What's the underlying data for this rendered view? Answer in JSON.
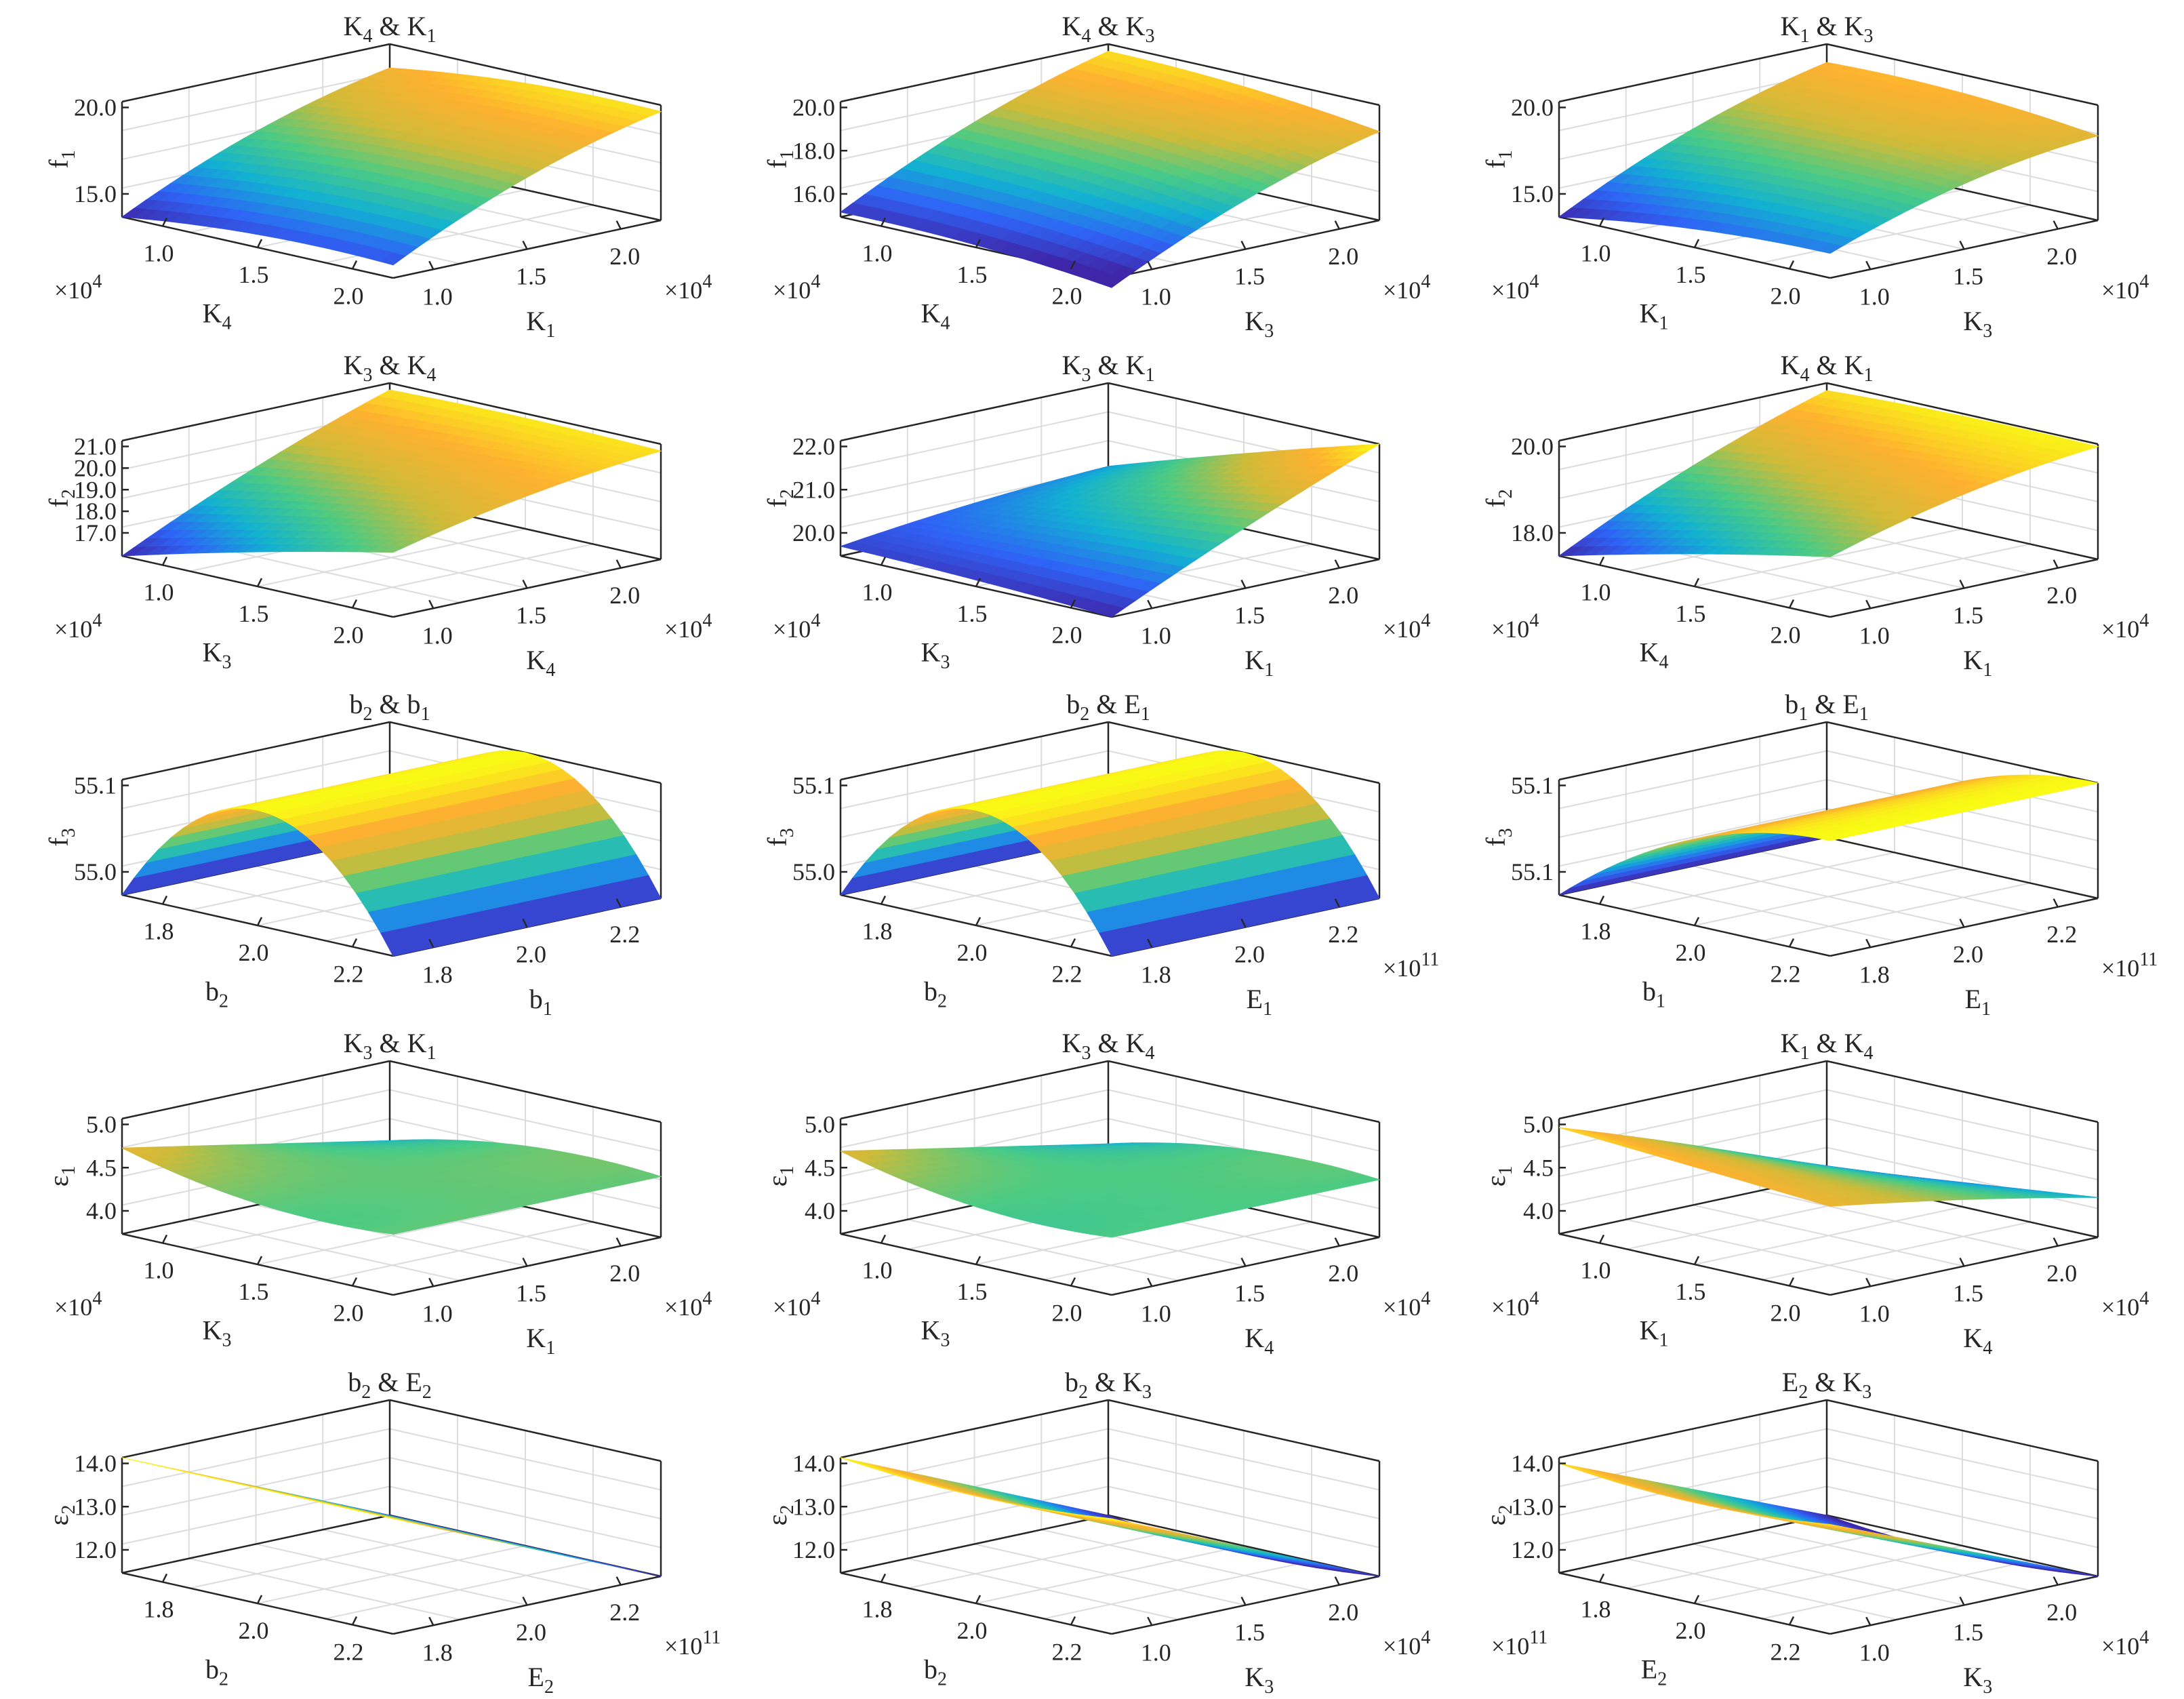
{
  "colormap": [
    "#3e26a8",
    "#2f63f6",
    "#12b1d2",
    "#4bcb84",
    "#cfbb39",
    "#feb130",
    "#f9fb15"
  ],
  "axis_color": "#262626",
  "grid_color": "#dcdcdc",
  "chart_data": [
    {
      "type": "surface",
      "title": "K",
      "title_sub_a": "4",
      "title_sep": " & K",
      "title_sub_b": "1",
      "xlabel": "K",
      "xlabel_sub": "4",
      "ylabel": "K",
      "ylabel_sub": "1",
      "zlabel": "f",
      "zlabel_sub": "1",
      "x_ticks": [
        "1.0",
        "1.5",
        "2.0"
      ],
      "y_ticks": [
        "1.0",
        "1.5",
        "2.0"
      ],
      "z_ticks": [
        "15.0",
        "20.0"
      ],
      "x_mult": "×10",
      "x_mult_exp": "4",
      "y_mult": "×10",
      "y_mult_exp": "4",
      "z_range": [
        14.7,
        20.0
      ],
      "corners": [
        14.7,
        15.3,
        18.9,
        19.7
      ],
      "bulge": [
        1.0,
        0.6
      ],
      "shape": "smooth"
    },
    {
      "type": "surface",
      "title": "K",
      "title_sub_a": "4",
      "title_sep": " & K",
      "title_sub_b": "3",
      "xlabel": "K",
      "xlabel_sub": "4",
      "ylabel": "K",
      "ylabel_sub": "3",
      "zlabel": "f",
      "zlabel_sub": "1",
      "x_ticks": [
        "1.0",
        "1.5",
        "2.0"
      ],
      "y_ticks": [
        "1.0",
        "1.5",
        "2.0"
      ],
      "z_ticks": [
        "16.0",
        "18.0",
        "20.0"
      ],
      "x_mult": "×10",
      "x_mult_exp": "4",
      "y_mult": "×10",
      "y_mult_exp": "4",
      "z_range": [
        15.2,
        20.0
      ],
      "corners": [
        15.4,
        14.8,
        19.7,
        18.9
      ],
      "bulge": [
        0.8,
        0.4
      ],
      "shape": "smooth"
    },
    {
      "type": "surface",
      "title": "K",
      "title_sub_a": "1",
      "title_sep": " & K",
      "title_sub_b": "3",
      "xlabel": "K",
      "xlabel_sub": "1",
      "ylabel": "K",
      "ylabel_sub": "3",
      "zlabel": "f",
      "zlabel_sub": "1",
      "x_ticks": [
        "1.0",
        "1.5",
        "2.0"
      ],
      "y_ticks": [
        "1.0",
        "1.5",
        "2.0"
      ],
      "z_ticks": [
        "15.0",
        "20.0"
      ],
      "x_mult": "×10",
      "x_mult_exp": "4",
      "y_mult": "×10",
      "y_mult_exp": "4",
      "z_range": [
        13.0,
        20.5
      ],
      "corners": [
        13.0,
        14.6,
        19.3,
        18.5
      ],
      "bulge": [
        1.4,
        0.8
      ],
      "shape": "smooth"
    },
    {
      "type": "surface",
      "title": "K",
      "title_sub_a": "3",
      "title_sep": " & K",
      "title_sub_b": "4",
      "xlabel": "K",
      "xlabel_sub": "3",
      "ylabel": "K",
      "ylabel_sub": "4",
      "zlabel": "f",
      "zlabel_sub": "2",
      "x_ticks": [
        "1.0",
        "1.5",
        "2.0"
      ],
      "y_ticks": [
        "1.0",
        "1.5",
        "2.0"
      ],
      "z_ticks": [
        "17.0",
        "18.0",
        "19.0",
        "20.0",
        "21.0"
      ],
      "x_mult": "×10",
      "x_mult_exp": "4",
      "y_mult": "×10",
      "y_mult_exp": "4",
      "z_range": [
        16.5,
        21.5
      ],
      "corners": [
        16.5,
        19.3,
        21.2,
        21.2
      ],
      "bulge": [
        0.5,
        0.2
      ],
      "shape": "smooth"
    },
    {
      "type": "surface",
      "title": "K",
      "title_sub_a": "3",
      "title_sep": " & K",
      "title_sub_b": "1",
      "xlabel": "K",
      "xlabel_sub": "3",
      "ylabel": "K",
      "ylabel_sub": "1",
      "zlabel": "f",
      "zlabel_sub": "2",
      "x_ticks": [
        "1.0",
        "1.5",
        "2.0"
      ],
      "y_ticks": [
        "1.0",
        "1.5",
        "2.0"
      ],
      "z_ticks": [
        "20.0",
        "21.0",
        "22.0"
      ],
      "x_mult": "×10",
      "x_mult_exp": "4",
      "y_mult": "×10",
      "y_mult_exp": "4",
      "z_range": [
        19.2,
        22.8
      ],
      "corners": [
        19.5,
        19.2,
        20.2,
        22.8
      ],
      "bulge": [
        0.2,
        0.1
      ],
      "shape": "smooth"
    },
    {
      "type": "surface",
      "title": "K",
      "title_sub_a": "4",
      "title_sep": " & K",
      "title_sub_b": "1",
      "xlabel": "K",
      "xlabel_sub": "4",
      "ylabel": "K",
      "ylabel_sub": "1",
      "zlabel": "f",
      "zlabel_sub": "2",
      "x_ticks": [
        "1.0",
        "1.5",
        "2.0"
      ],
      "y_ticks": [
        "1.0",
        "1.5",
        "2.0"
      ],
      "z_ticks": [
        "18.0",
        "20.0"
      ],
      "x_mult": "×10",
      "x_mult_exp": "4",
      "y_mult": "×10",
      "y_mult_exp": "4",
      "z_range": [
        17.4,
        22.0
      ],
      "corners": [
        17.4,
        19.8,
        21.7,
        21.9
      ],
      "bulge": [
        0.6,
        0.2
      ],
      "shape": "smooth"
    },
    {
      "type": "surface",
      "title": "b",
      "title_sub_a": "2",
      "title_sep": " & b",
      "title_sub_b": "1",
      "xlabel": "b",
      "xlabel_sub": "2",
      "ylabel": "b",
      "ylabel_sub": "1",
      "zlabel": "f",
      "zlabel_sub": "3",
      "x_ticks": [
        "1.8",
        "2.0",
        "2.2"
      ],
      "y_ticks": [
        "1.8",
        "2.0",
        "2.2"
      ],
      "z_ticks": [
        "55.0",
        "55.1"
      ],
      "x_mult": "",
      "x_mult_exp": "",
      "y_mult": "",
      "y_mult_exp": "",
      "z_range": [
        54.92,
        55.12
      ],
      "peak": 55.12,
      "base": 54.92,
      "shape": "ridge_x"
    },
    {
      "type": "surface",
      "title": "b",
      "title_sub_a": "2",
      "title_sep": " & E",
      "title_sub_b": "1",
      "xlabel": "b",
      "xlabel_sub": "2",
      "ylabel": "E",
      "ylabel_sub": "1",
      "zlabel": "f",
      "zlabel_sub": "3",
      "x_ticks": [
        "1.8",
        "2.0",
        "2.2"
      ],
      "y_ticks": [
        "1.8",
        "2.0",
        "2.2"
      ],
      "z_ticks": [
        "55.0",
        "55.1"
      ],
      "x_mult": "",
      "x_mult_exp": "",
      "y_mult": "×10",
      "y_mult_exp": "11",
      "z_range": [
        54.92,
        55.12
      ],
      "peak": 55.12,
      "base": 54.92,
      "shape": "ridge_x"
    },
    {
      "type": "surface",
      "title": "b",
      "title_sub_a": "1",
      "title_sep": " & E",
      "title_sub_b": "1",
      "xlabel": "b",
      "xlabel_sub": "1",
      "ylabel": "E",
      "ylabel_sub": "1",
      "zlabel": "f",
      "zlabel_sub": "3",
      "x_ticks": [
        "1.8",
        "2.0",
        "2.2"
      ],
      "y_ticks": [
        "1.8",
        "2.0",
        "2.2"
      ],
      "z_ticks": [
        "55.1",
        "55.1"
      ],
      "x_mult": "",
      "x_mult_exp": "",
      "y_mult": "×10",
      "y_mult_exp": "11",
      "z_range": [
        54.92,
        55.12
      ],
      "peak": 55.12,
      "base": 54.92,
      "shape": "ridge_x_half"
    },
    {
      "type": "surface",
      "title": "K",
      "title_sub_a": "3",
      "title_sep": " & K",
      "title_sub_b": "1",
      "xlabel": "K",
      "xlabel_sub": "3",
      "ylabel": "K",
      "ylabel_sub": "1",
      "zlabel": "ε",
      "zlabel_sub": "1",
      "x_ticks": [
        "1.0",
        "1.5",
        "2.0"
      ],
      "y_ticks": [
        "1.0",
        "1.5",
        "2.0"
      ],
      "z_ticks": [
        "4.0",
        "4.5",
        "5.0"
      ],
      "x_mult": "×10",
      "x_mult_exp": "4",
      "y_mult": "×10",
      "y_mult_exp": "4",
      "z_range": [
        4.0,
        5.1
      ],
      "corners": [
        4.58,
        4.58,
        4.58,
        4.58
      ],
      "bulge": [
        0.1,
        0.0
      ],
      "shape": "twist"
    },
    {
      "type": "surface",
      "title": "K",
      "title_sub_a": "3",
      "title_sep": " & K",
      "title_sub_b": "4",
      "xlabel": "K",
      "xlabel_sub": "3",
      "ylabel": "K",
      "ylabel_sub": "4",
      "zlabel": "ε",
      "zlabel_sub": "1",
      "x_ticks": [
        "1.0",
        "1.5",
        "2.0"
      ],
      "y_ticks": [
        "1.0",
        "1.5",
        "2.0"
      ],
      "z_ticks": [
        "4.0",
        "4.5",
        "5.0"
      ],
      "x_mult": "×10",
      "x_mult_exp": "4",
      "y_mult": "×10",
      "y_mult_exp": "4",
      "z_range": [
        4.0,
        5.1
      ],
      "corners": [
        4.55,
        4.55,
        4.55,
        4.55
      ],
      "bulge": [
        0.1,
        0.0
      ],
      "shape": "twist"
    },
    {
      "type": "surface",
      "title": "K",
      "title_sub_a": "1",
      "title_sep": " & K",
      "title_sub_b": "4",
      "xlabel": "K",
      "xlabel_sub": "1",
      "ylabel": "K",
      "ylabel_sub": "4",
      "zlabel": "ε",
      "zlabel_sub": "1",
      "x_ticks": [
        "1.0",
        "1.5",
        "2.0"
      ],
      "y_ticks": [
        "1.0",
        "1.5",
        "2.0"
      ],
      "z_ticks": [
        "4.0",
        "4.5",
        "5.0"
      ],
      "x_mult": "×10",
      "x_mult_exp": "4",
      "y_mult": "×10",
      "y_mult_exp": "4",
      "z_range": [
        4.0,
        5.3
      ],
      "corners": [
        5.2,
        5.0,
        4.1,
        4.45
      ],
      "bulge": [
        0.05,
        0.0
      ],
      "shape": "smooth"
    },
    {
      "type": "surface",
      "title": "b",
      "title_sub_a": "2",
      "title_sep": " & E",
      "title_sub_b": "2",
      "xlabel": "b",
      "xlabel_sub": "2",
      "ylabel": "E",
      "ylabel_sub": "2",
      "zlabel": "ε",
      "zlabel_sub": "2",
      "x_ticks": [
        "1.8",
        "2.0",
        "2.2"
      ],
      "y_ticks": [
        "1.8",
        "2.0",
        "2.2"
      ],
      "z_ticks": [
        "12.0",
        "13.0",
        "14.0"
      ],
      "x_mult": "",
      "x_mult_exp": "",
      "y_mult": "×10",
      "y_mult_exp": "11",
      "z_range": [
        11.6,
        14.0
      ],
      "corners": [
        14.0,
        14.0,
        11.6,
        11.6
      ],
      "bulge": [
        0.0,
        0.0
      ],
      "shape": "smooth"
    },
    {
      "type": "surface",
      "title": "b",
      "title_sub_a": "2",
      "title_sep": " & K",
      "title_sub_b": "3",
      "xlabel": "b",
      "xlabel_sub": "2",
      "ylabel": "K",
      "ylabel_sub": "3",
      "zlabel": "ε",
      "zlabel_sub": "2",
      "x_ticks": [
        "1.8",
        "2.0",
        "2.2"
      ],
      "y_ticks": [
        "1.0",
        "1.5",
        "2.0"
      ],
      "z_ticks": [
        "12.0",
        "13.0",
        "14.0"
      ],
      "x_mult": "",
      "x_mult_exp": "",
      "y_mult": "×10",
      "y_mult_exp": "4",
      "z_range": [
        11.9,
        14.1
      ],
      "corners": [
        14.1,
        14.1,
        11.9,
        11.9
      ],
      "bulge": [
        0.0,
        -0.3
      ],
      "shape": "smooth"
    },
    {
      "type": "surface",
      "title": "E",
      "title_sub_a": "2",
      "title_sep": " & K",
      "title_sub_b": "3",
      "xlabel": "E",
      "xlabel_sub": "2",
      "ylabel": "K",
      "ylabel_sub": "3",
      "zlabel": "ε",
      "zlabel_sub": "2",
      "x_ticks": [
        "1.8",
        "2.0",
        "2.2"
      ],
      "y_ticks": [
        "1.0",
        "1.5",
        "2.0"
      ],
      "z_ticks": [
        "12.0",
        "13.0",
        "14.0"
      ],
      "x_mult": "×10",
      "x_mult_exp": "11",
      "y_mult": "×10",
      "y_mult_exp": "4",
      "z_range": [
        12.0,
        14.0
      ],
      "corners": [
        13.9,
        13.9,
        12.0,
        12.0
      ],
      "bulge": [
        0.0,
        -0.3
      ],
      "shape": "smooth"
    }
  ]
}
